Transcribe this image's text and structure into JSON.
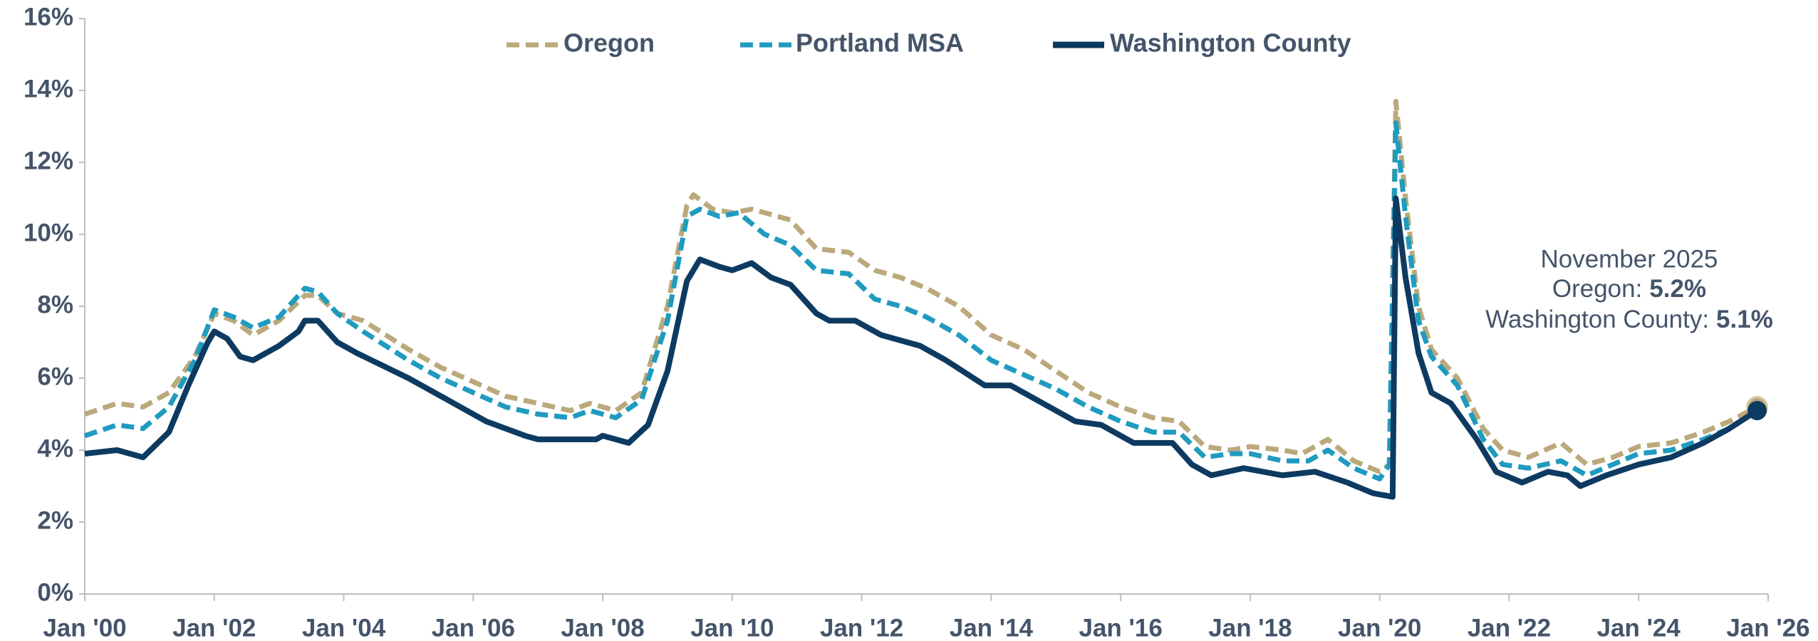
{
  "chart_data": {
    "type": "line",
    "legend": "top",
    "grid": false,
    "xlim": [
      2000,
      2026
    ],
    "xticks": [
      {
        "value": 2000,
        "label": "Jan '00"
      },
      {
        "value": 2002,
        "label": "Jan '02"
      },
      {
        "value": 2004,
        "label": "Jan '04"
      },
      {
        "value": 2006,
        "label": "Jan '06"
      },
      {
        "value": 2008,
        "label": "Jan '08"
      },
      {
        "value": 2010,
        "label": "Jan '10"
      },
      {
        "value": 2012,
        "label": "Jan '12"
      },
      {
        "value": 2014,
        "label": "Jan '14"
      },
      {
        "value": 2016,
        "label": "Jan '16"
      },
      {
        "value": 2018,
        "label": "Jan '18"
      },
      {
        "value": 2020,
        "label": "Jan '20"
      },
      {
        "value": 2022,
        "label": "Jan '22"
      },
      {
        "value": 2024,
        "label": "Jan '24"
      },
      {
        "value": 2026,
        "label": "Jan '26"
      }
    ],
    "ylim": [
      0,
      16
    ],
    "yticks": [
      {
        "value": 0,
        "label": "0%"
      },
      {
        "value": 2,
        "label": "2%"
      },
      {
        "value": 4,
        "label": "4%"
      },
      {
        "value": 6,
        "label": "6%"
      },
      {
        "value": 8,
        "label": "8%"
      },
      {
        "value": 10,
        "label": "10%"
      },
      {
        "value": 12,
        "label": "12%"
      },
      {
        "value": 14,
        "label": "14%"
      },
      {
        "value": 16,
        "label": "16%"
      }
    ],
    "series": [
      {
        "name": "Oregon",
        "color": "#bba97c",
        "dash": true,
        "x": [
          2000,
          2000.5,
          2000.9,
          2001.3,
          2001.7,
          2002.0,
          2002.3,
          2002.6,
          2003.0,
          2003.4,
          2003.6,
          2003.9,
          2004.3,
          2005.0,
          2005.5,
          2006.0,
          2006.5,
          2007.0,
          2007.5,
          2007.8,
          2008.2,
          2008.6,
          2009.0,
          2009.3,
          2009.4,
          2009.7,
          2010.0,
          2010.3,
          2010.9,
          2011.3,
          2011.8,
          2012.2,
          2012.6,
          2013.0,
          2013.5,
          2014.0,
          2014.5,
          2015.0,
          2015.5,
          2016.0,
          2016.5,
          2016.9,
          2017.3,
          2017.7,
          2018.0,
          2018.5,
          2018.8,
          2019.2,
          2019.6,
          2020.0,
          2020.15,
          2020.25,
          2020.4,
          2020.6,
          2020.8,
          2021.2,
          2021.6,
          2021.9,
          2022.3,
          2022.8,
          2023.2,
          2023.6,
          2024.0,
          2024.5,
          2025.0,
          2025.4,
          2025.83
        ],
        "values": [
          5.0,
          5.3,
          5.2,
          5.6,
          6.6,
          7.8,
          7.6,
          7.2,
          7.6,
          8.3,
          8.3,
          7.8,
          7.6,
          6.8,
          6.3,
          5.9,
          5.5,
          5.3,
          5.1,
          5.3,
          5.1,
          5.6,
          8.0,
          10.8,
          11.1,
          10.7,
          10.6,
          10.7,
          10.4,
          9.6,
          9.5,
          9.0,
          8.8,
          8.5,
          8.0,
          7.2,
          6.8,
          6.2,
          5.6,
          5.2,
          4.9,
          4.8,
          4.1,
          4.0,
          4.1,
          4.0,
          3.9,
          4.3,
          3.7,
          3.4,
          3.6,
          13.7,
          11.0,
          8.0,
          6.8,
          6.0,
          4.6,
          4.0,
          3.8,
          4.2,
          3.6,
          3.8,
          4.1,
          4.2,
          4.5,
          4.8,
          5.2
        ]
      },
      {
        "name": "Portland MSA",
        "color": "#1f9bbf",
        "dash": true,
        "x": [
          2000,
          2000.5,
          2000.9,
          2001.3,
          2001.7,
          2002.0,
          2002.3,
          2002.6,
          2003.0,
          2003.4,
          2003.6,
          2003.9,
          2004.3,
          2005.0,
          2005.5,
          2006.0,
          2006.5,
          2007.0,
          2007.5,
          2007.8,
          2008.2,
          2008.6,
          2009.0,
          2009.3,
          2009.5,
          2009.8,
          2010.1,
          2010.5,
          2010.9,
          2011.3,
          2011.8,
          2012.2,
          2012.6,
          2013.0,
          2013.5,
          2014.0,
          2014.5,
          2015.0,
          2015.5,
          2016.0,
          2016.5,
          2016.9,
          2017.3,
          2017.7,
          2018.0,
          2018.5,
          2018.9,
          2019.2,
          2019.6,
          2020.0,
          2020.15,
          2020.25,
          2020.4,
          2020.6,
          2020.8,
          2021.2,
          2021.6,
          2021.9,
          2022.3,
          2022.8,
          2023.2,
          2023.6,
          2024.0,
          2024.5,
          2025.0,
          2025.4,
          2025.83
        ],
        "values": [
          4.4,
          4.7,
          4.6,
          5.2,
          6.5,
          7.9,
          7.7,
          7.4,
          7.7,
          8.5,
          8.4,
          7.8,
          7.3,
          6.5,
          6.0,
          5.6,
          5.2,
          5.0,
          4.9,
          5.1,
          4.9,
          5.4,
          7.6,
          10.5,
          10.7,
          10.5,
          10.6,
          10.0,
          9.7,
          9.0,
          8.9,
          8.2,
          8.0,
          7.7,
          7.2,
          6.5,
          6.1,
          5.7,
          5.2,
          4.8,
          4.5,
          4.5,
          3.8,
          3.9,
          3.9,
          3.7,
          3.7,
          4.0,
          3.5,
          3.2,
          3.6,
          13.1,
          10.5,
          7.6,
          6.6,
          5.8,
          4.3,
          3.6,
          3.5,
          3.7,
          3.3,
          3.6,
          3.9,
          4.0,
          4.3,
          4.6,
          5.1
        ]
      },
      {
        "name": "Washington County",
        "color": "#0d3a60",
        "dash": false,
        "x": [
          2000,
          2000.5,
          2000.9,
          2001.3,
          2001.6,
          2001.9,
          2002.0,
          2002.2,
          2002.4,
          2002.6,
          2003.0,
          2003.3,
          2003.4,
          2003.6,
          2003.9,
          2004.2,
          2005.0,
          2005.6,
          2006.2,
          2006.8,
          2007.0,
          2007.9,
          2008.0,
          2008.4,
          2008.7,
          2009.0,
          2009.3,
          2009.5,
          2009.8,
          2010.0,
          2010.3,
          2010.6,
          2010.9,
          2011.3,
          2011.5,
          2011.9,
          2012.3,
          2012.9,
          2013.3,
          2013.9,
          2014.3,
          2014.8,
          2015.3,
          2015.7,
          2016.2,
          2016.8,
          2017.1,
          2017.4,
          2017.9,
          2018.5,
          2019.0,
          2019.5,
          2019.9,
          2020.2,
          2020.25,
          2020.4,
          2020.6,
          2020.8,
          2021.1,
          2021.5,
          2021.8,
          2022.2,
          2022.6,
          2022.9,
          2023.1,
          2023.5,
          2024.0,
          2024.5,
          2025.0,
          2025.4,
          2025.83
        ],
        "values": [
          3.9,
          4.0,
          3.8,
          4.5,
          5.8,
          7.0,
          7.3,
          7.1,
          6.6,
          6.5,
          6.9,
          7.3,
          7.6,
          7.6,
          7.0,
          6.7,
          6.0,
          5.4,
          4.8,
          4.4,
          4.3,
          4.3,
          4.4,
          4.2,
          4.7,
          6.2,
          8.7,
          9.3,
          9.1,
          9.0,
          9.2,
          8.8,
          8.6,
          7.8,
          7.6,
          7.6,
          7.2,
          6.9,
          6.5,
          5.8,
          5.8,
          5.3,
          4.8,
          4.7,
          4.2,
          4.2,
          3.6,
          3.3,
          3.5,
          3.3,
          3.4,
          3.1,
          2.8,
          2.7,
          11.0,
          8.8,
          6.7,
          5.6,
          5.3,
          4.3,
          3.4,
          3.1,
          3.4,
          3.3,
          3.0,
          3.3,
          3.6,
          3.8,
          4.2,
          4.6,
          5.1
        ]
      }
    ],
    "annotation": {
      "title": "November 2025",
      "lines": [
        {
          "label": "Oregon:",
          "value": "5.2%"
        },
        {
          "label": "Washington County:",
          "value": "5.1%"
        }
      ]
    }
  }
}
